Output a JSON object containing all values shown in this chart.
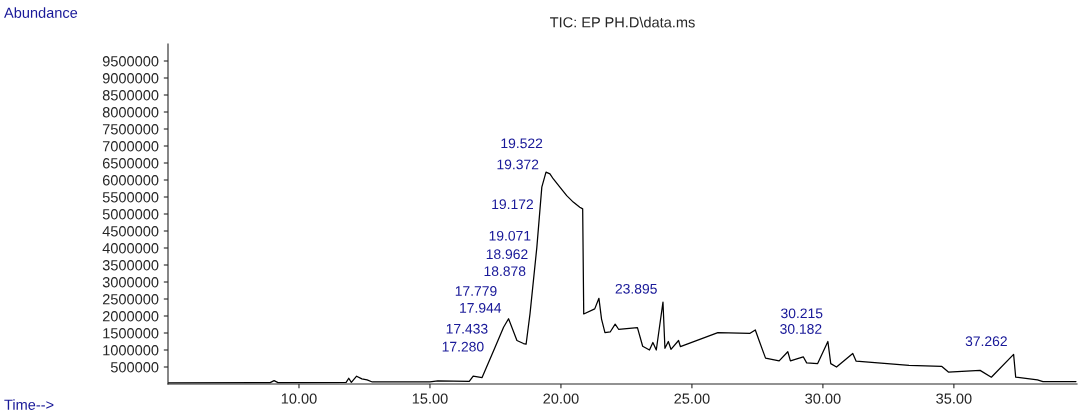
{
  "chart_data": {
    "type": "line",
    "title": "TIC: EP PH.D\\data.ms",
    "xlabel": "Time-->",
    "ylabel": "Abundance",
    "x": [
      5,
      8.9,
      9.05,
      9.2,
      11.8,
      11.9,
      12.0,
      12.2,
      12.4,
      12.6,
      12.8,
      15.0,
      15.3,
      16.5,
      16.65,
      16.99,
      17.49,
      17.81,
      18.0,
      18.32,
      18.57,
      18.67,
      18.82,
      19.08,
      19.27,
      19.43,
      19.58,
      19.71,
      19.96,
      20.22,
      20.47,
      20.72,
      20.83,
      20.87,
      21.29,
      21.45,
      21.55,
      21.68,
      21.88,
      22.07,
      22.2,
      22.92,
      23.12,
      23.38,
      23.51,
      23.64,
      23.895,
      23.97,
      24.1,
      24.2,
      24.49,
      24.56,
      25.99,
      27.22,
      27.42,
      27.55,
      27.81,
      28.33,
      28.66,
      28.76,
      29.25,
      29.38,
      29.8,
      30.19,
      30.3,
      30.52,
      31.14,
      31.27,
      33.29,
      34.53,
      34.79,
      36.0,
      36.43,
      37.28,
      37.36,
      38.19,
      38.4,
      39.66
    ],
    "series": [
      {
        "color": "#000000",
        "values": [
          30000,
          40000,
          100000,
          40000,
          50000,
          170000,
          50000,
          230000,
          150000,
          120000,
          60000,
          60000,
          90000,
          80000,
          230000,
          190000,
          1090000,
          1670000,
          1920000,
          1280000,
          1190000,
          1170000,
          2070000,
          4020000,
          5790000,
          6230000,
          6180000,
          6030000,
          5790000,
          5540000,
          5350000,
          5200000,
          5150000,
          2060000,
          2210000,
          2520000,
          1910000,
          1510000,
          1530000,
          1760000,
          1610000,
          1660000,
          1110000,
          1000000,
          1220000,
          1000000,
          2410000,
          1050000,
          1250000,
          1020000,
          1280000,
          1100000,
          1510000,
          1490000,
          1590000,
          1310000,
          760000,
          680000,
          950000,
          680000,
          800000,
          620000,
          600000,
          1250000,
          600000,
          500000,
          900000,
          670000,
          550000,
          520000,
          350000,
          400000,
          200000,
          870000,
          200000,
          120000,
          70000,
          70000
        ]
      }
    ],
    "xlim": [
      5,
      39.7
    ],
    "ylim": [
      0,
      10000000
    ],
    "xticks": [
      {
        "value": 10,
        "label": "10.00"
      },
      {
        "value": 15,
        "label": "15.00"
      },
      {
        "value": 20,
        "label": "20.00"
      },
      {
        "value": 25,
        "label": "25.00"
      },
      {
        "value": 30,
        "label": "30.00"
      },
      {
        "value": 35,
        "label": "35.00"
      }
    ],
    "yticks": [
      500000,
      1000000,
      1500000,
      2000000,
      2500000,
      3000000,
      3500000,
      4000000,
      4500000,
      5000000,
      5500000,
      6000000,
      6500000,
      7000000,
      7500000,
      8000000,
      8500000,
      9000000,
      9500000
    ],
    "grid": false,
    "legend": false,
    "line_style": "solid",
    "marker": "none",
    "annotations": [
      {
        "text": "17.280",
        "x": 17.28,
        "y": 710000
      },
      {
        "text": "17.433",
        "x": 17.433,
        "y": 990000
      },
      {
        "text": "17.944",
        "x": 17.944,
        "y": 1850000
      },
      {
        "text": "17.779",
        "x": 17.779,
        "y": 1610000
      },
      {
        "text": "18.878",
        "x": 18.878,
        "y": 2440000
      },
      {
        "text": "18.962",
        "x": 18.962,
        "y": 2940000
      },
      {
        "text": "19.071",
        "x": 19.071,
        "y": 3970000
      },
      {
        "text": "19.172",
        "x": 19.172,
        "y": 4900000
      },
      {
        "text": "19.372",
        "x": 19.372,
        "y": 6070000
      },
      {
        "text": "19.522",
        "x": 19.522,
        "y": 6200000
      },
      {
        "text": "23.895",
        "x": 23.895,
        "y": 2410000
      },
      {
        "text": "30.182",
        "x": 30.182,
        "y": 1230000
      },
      {
        "text": "30.215",
        "x": 30.215,
        "y": 1200000
      },
      {
        "text": "37.262",
        "x": 37.262,
        "y": 870000
      }
    ]
  }
}
